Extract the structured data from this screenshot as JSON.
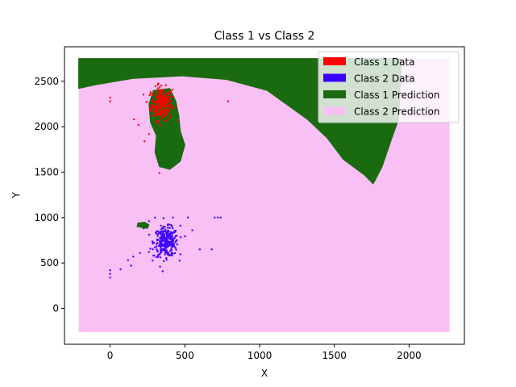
{
  "chart_data": {
    "type": "scatter",
    "title": "Class 1 vs Class 2",
    "xlabel": "X",
    "ylabel": "Y",
    "xlim": [
      -305,
      2370
    ],
    "ylim": [
      -395,
      2880
    ],
    "xticks": [
      0,
      500,
      1000,
      1500,
      2000
    ],
    "yticks": [
      0,
      500,
      1000,
      1500,
      2000,
      2500
    ],
    "grid": false,
    "legend_position": "top-right",
    "legend": [
      {
        "label": "Class 1 Data",
        "color": "#ff0000"
      },
      {
        "label": "Class 2 Data",
        "color": "#3a00ff"
      },
      {
        "label": "Class 1 Prediction",
        "color": "#1a6a10"
      },
      {
        "label": "Class 2 Prediction",
        "color": "#f9c0f5"
      }
    ],
    "prediction_grid": {
      "x_range": [
        -210,
        2270
      ],
      "y_range": [
        -260,
        2750
      ],
      "background_class": "Class 2 Prediction"
    },
    "class1_prediction_regions": [
      {
        "name": "top-band",
        "points": [
          [
            -210,
            2750
          ],
          [
            1950,
            2750
          ],
          [
            1930,
            2080
          ],
          [
            1880,
            1850
          ],
          [
            1820,
            1560
          ],
          [
            1760,
            1370
          ],
          [
            1700,
            1470
          ],
          [
            1560,
            1640
          ],
          [
            1450,
            1880
          ],
          [
            1320,
            2080
          ],
          [
            1050,
            2400
          ],
          [
            780,
            2520
          ],
          [
            480,
            2560
          ],
          [
            150,
            2530
          ],
          [
            -100,
            2460
          ],
          [
            -210,
            2420
          ]
        ]
      },
      {
        "name": "middle-blob",
        "points": [
          [
            290,
            2400
          ],
          [
            400,
            2420
          ],
          [
            440,
            2280
          ],
          [
            460,
            2120
          ],
          [
            470,
            1950
          ],
          [
            500,
            1800
          ],
          [
            470,
            1620
          ],
          [
            400,
            1530
          ],
          [
            330,
            1560
          ],
          [
            300,
            1720
          ],
          [
            310,
            1900
          ],
          [
            270,
            2050
          ],
          [
            260,
            2250
          ]
        ]
      },
      {
        "name": "lower-blob",
        "points": [
          [
            180,
            900
          ],
          [
            250,
            880
          ],
          [
            260,
            920
          ],
          [
            230,
            950
          ],
          [
            185,
            940
          ]
        ]
      }
    ],
    "class1_data": {
      "color": "#ff0000",
      "clusters": [
        {
          "center": [
            345,
            2250
          ],
          "spread": [
            35,
            90
          ],
          "count": 260
        }
      ],
      "outliers": [
        [
          0,
          2320
        ],
        [
          0,
          2280
        ],
        [
          160,
          2080
        ],
        [
          190,
          2020
        ],
        [
          230,
          1840
        ],
        [
          260,
          1920
        ],
        [
          330,
          1490
        ],
        [
          790,
          2280
        ],
        [
          270,
          2380
        ],
        [
          320,
          2460
        ]
      ]
    },
    "class2_data": {
      "color": "#3a00ff",
      "clusters": [
        {
          "center": [
            375,
            730
          ],
          "spread": [
            40,
            80
          ],
          "count": 300
        }
      ],
      "outliers": [
        [
          0,
          420
        ],
        [
          0,
          380
        ],
        [
          0,
          340
        ],
        [
          70,
          430
        ],
        [
          120,
          530
        ],
        [
          140,
          470
        ],
        [
          155,
          570
        ],
        [
          200,
          610
        ],
        [
          225,
          880
        ],
        [
          260,
          960
        ],
        [
          700,
          1000
        ],
        [
          740,
          1000
        ],
        [
          720,
          1000
        ],
        [
          520,
          1000
        ],
        [
          550,
          860
        ],
        [
          600,
          650
        ],
        [
          680,
          650
        ],
        [
          470,
          910
        ],
        [
          300,
          1000
        ],
        [
          420,
          1000
        ],
        [
          260,
          620
        ],
        [
          290,
          580
        ]
      ]
    }
  }
}
